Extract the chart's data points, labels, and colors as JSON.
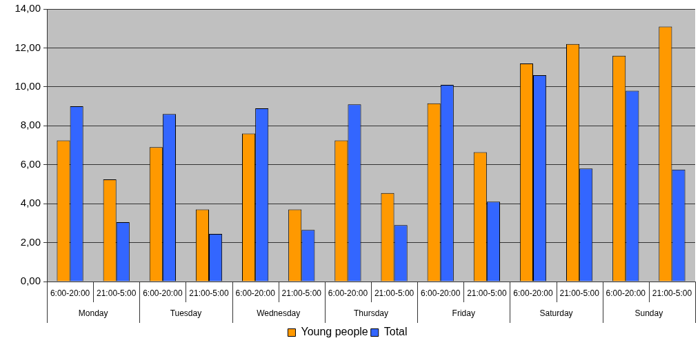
{
  "chart_data": {
    "type": "bar",
    "categories": [
      "6:00-20:00",
      "21:00-5:00",
      "6:00-20:00",
      "21:00-5:00",
      "6:00-20:00",
      "21:00-5:00",
      "6:00-20:00",
      "21:00-5:00",
      "6:00-20:00",
      "21:00-5:00",
      "6:00-20:00",
      "21:00-5:00",
      "6:00-20:00",
      "21:00-5:00"
    ],
    "annotations": [
      "Monday",
      "Tuesday",
      "Wednesday",
      "Thursday",
      "Friday",
      "Saturday",
      "Sunday"
    ],
    "series": [
      {
        "name": "Young people",
        "color": "#ff9900",
        "values": [
          7.25,
          5.25,
          6.9,
          3.7,
          7.6,
          3.7,
          7.25,
          4.55,
          9.15,
          6.65,
          11.2,
          12.2,
          11.6,
          13.1
        ]
      },
      {
        "name": "Total",
        "color": "#3366ff",
        "values": [
          9.0,
          3.05,
          8.6,
          2.45,
          8.9,
          2.65,
          9.1,
          2.9,
          10.1,
          4.1,
          10.6,
          5.8,
          9.8,
          5.75
        ]
      }
    ],
    "ylim": [
      0,
      14
    ],
    "yticks": [
      {
        "value": 0,
        "label": "0,00"
      },
      {
        "value": 2,
        "label": "2,00"
      },
      {
        "value": 4,
        "label": "4,00"
      },
      {
        "value": 6,
        "label": "6,00"
      },
      {
        "value": 8,
        "label": "8,00"
      },
      {
        "value": 10,
        "label": "10,00"
      },
      {
        "value": 12,
        "label": "12,00"
      },
      {
        "value": 14,
        "label": "14,00"
      }
    ],
    "grid": "y",
    "legend": "bottom"
  }
}
